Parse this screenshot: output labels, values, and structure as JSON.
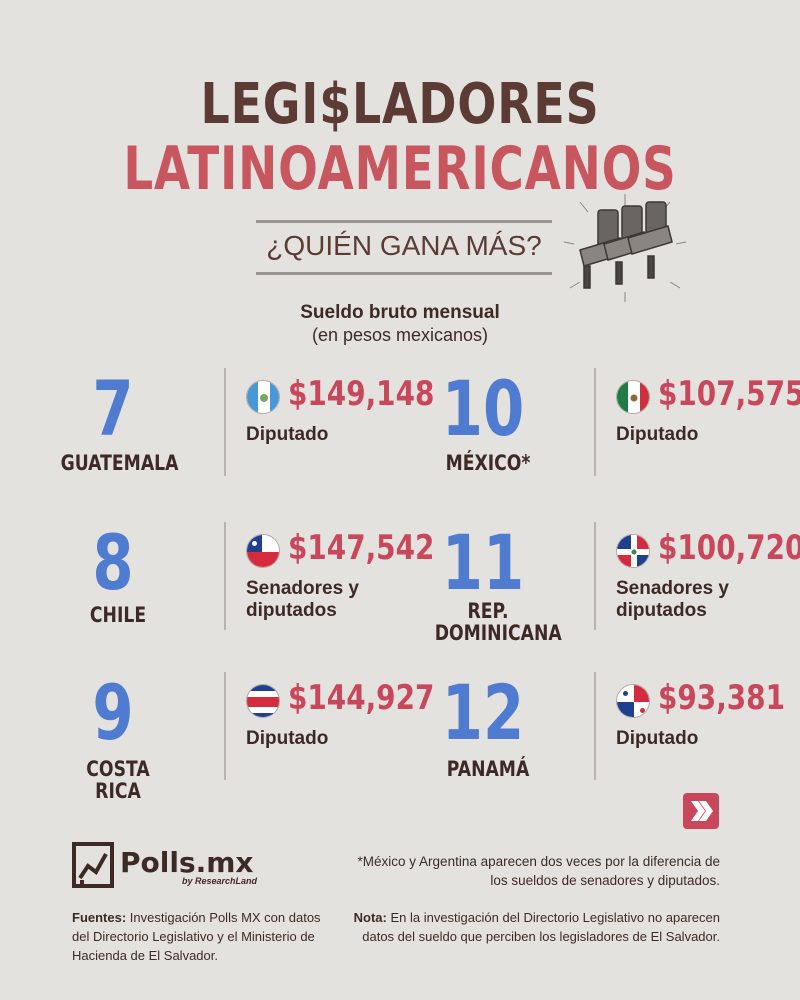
{
  "header": {
    "title_line1": "LEGI$LADORES",
    "title_line2": "LATINOAMERICANOS",
    "subtitle": "¿QUIÉN GANA MÁS?",
    "chairs_icon": "chairs-icon"
  },
  "salary_label": {
    "main": "Sueldo bruto mensual",
    "sub": "(en pesos mexicanos)"
  },
  "entries": [
    {
      "rank": "7",
      "country": "GUATEMALA",
      "amount": "$149,148",
      "role": "Diputado",
      "flag_icon": "guatemala-flag-icon"
    },
    {
      "rank": "10",
      "country": "MÉXICO*",
      "amount": "$107,575",
      "role": "Diputado",
      "flag_icon": "mexico-flag-icon"
    },
    {
      "rank": "8",
      "country": "CHILE",
      "amount": "$147,542",
      "role": "Senadores y diputados",
      "flag_icon": "chile-flag-icon"
    },
    {
      "rank": "11",
      "country": "REP. DOMINICANA",
      "amount": "$100,720",
      "role": "Senadores y diputados",
      "flag_icon": "dominican-republic-flag-icon"
    },
    {
      "rank": "9",
      "country": "COSTA RICA",
      "amount": "$144,927",
      "role": "Diputado",
      "flag_icon": "costa-rica-flag-icon"
    },
    {
      "rank": "12",
      "country": "PANAMÁ",
      "amount": "$93,381",
      "role": "Diputado",
      "flag_icon": "panama-flag-icon"
    }
  ],
  "colors": {
    "background": "#e4e2df",
    "brown": "#5b3b33",
    "red": "#c8475a",
    "blue": "#4f7bd1"
  },
  "next_button_icon": "chevron-right-icon",
  "brand": {
    "name": "Polls.mx",
    "tagline": "by ResearchLand"
  },
  "footnote": "*México y Argentina aparecen dos veces por la diferencia de los sueldos de senadores y diputados.",
  "sources": {
    "label": "Fuentes:",
    "text": " Investigación Polls MX con datos del Directorio Legislativo y el Ministerio de Hacienda de El Salvador."
  },
  "note": {
    "label": "Nota:",
    "text": " En la investigación del Directorio Legislativo no aparecen datos del sueldo que perciben los legisladores de El Salvador."
  }
}
